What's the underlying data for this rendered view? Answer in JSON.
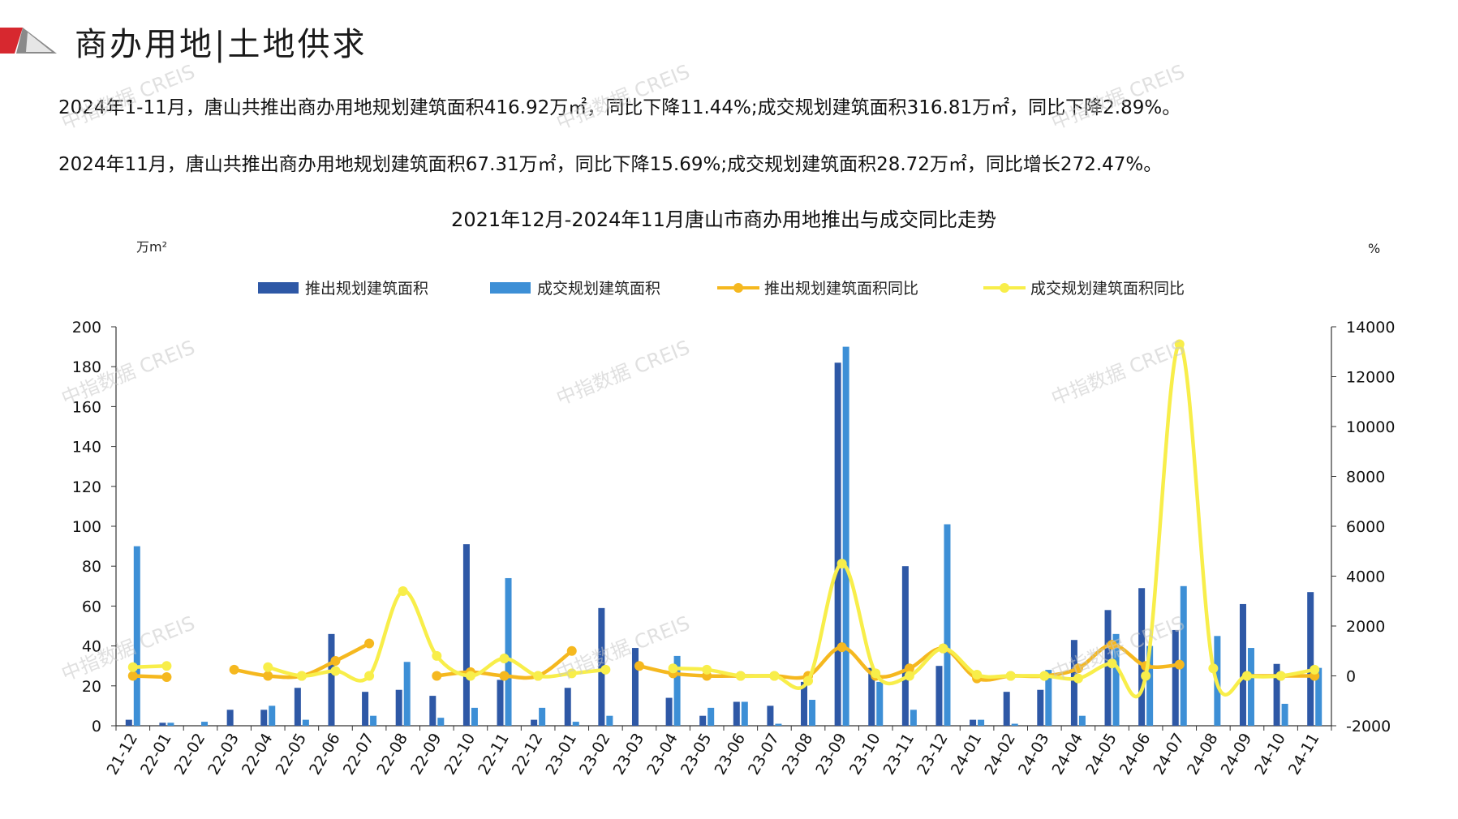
{
  "header": {
    "title": "商办用地|土地供求"
  },
  "summary": {
    "line1": "2024年1-11月，唐山共推出商办用地规划建筑面积416.92万㎡，同比下降11.44%;成交规划建筑面积316.81万㎡，同比下降2.89%。",
    "line2": "2024年11月，唐山共推出商办用地规划建筑面积67.31万㎡，同比下降15.69%;成交规划建筑面积28.72万㎡，同比增长272.47%。"
  },
  "watermark": "中指数据 CREIS",
  "colors": {
    "supply_bar": "#2e58a6",
    "deal_bar": "#3d8fd6",
    "supply_yoy": "#f5b81f",
    "deal_yoy": "#f8ee4a",
    "axis": "#333333",
    "logo_red": "#d7282f",
    "logo_gray": "#8a8a8a"
  },
  "chart_data": {
    "type": "bar",
    "title": "2021年12月-2024年11月唐山市商办用地推出与成交同比走势",
    "y_left_unit": "万m²",
    "y_right_unit": "%",
    "ylim": [
      0,
      200
    ],
    "y_ticks": [
      0,
      20,
      40,
      60,
      80,
      100,
      120,
      140,
      160,
      180,
      200
    ],
    "y2lim": [
      -2000,
      14000
    ],
    "y2_ticks": [
      -2000,
      0,
      2000,
      4000,
      6000,
      8000,
      10000,
      12000,
      14000
    ],
    "legend_position": "top",
    "grid": false,
    "categories": [
      "21-12",
      "22-01",
      "22-02",
      "22-03",
      "22-04",
      "22-05",
      "22-06",
      "22-07",
      "22-08",
      "22-09",
      "22-10",
      "22-11",
      "22-12",
      "23-01",
      "23-02",
      "23-03",
      "23-04",
      "23-05",
      "23-06",
      "23-07",
      "23-08",
      "23-09",
      "23-10",
      "23-11",
      "23-12",
      "24-01",
      "24-02",
      "24-03",
      "24-04",
      "24-05",
      "24-06",
      "24-07",
      "24-08",
      "24-09",
      "24-10",
      "24-11"
    ],
    "series": [
      {
        "name": "推出规划建筑面积",
        "kind": "bar",
        "axis": "left",
        "values": [
          3,
          1.5,
          0,
          8,
          8,
          19,
          46,
          17,
          18,
          15,
          91,
          23,
          3,
          19,
          59,
          39,
          14,
          5,
          12,
          10,
          22,
          182,
          29,
          80,
          30,
          3,
          17,
          18,
          43,
          58,
          69,
          48,
          0,
          61,
          31,
          67
        ]
      },
      {
        "name": "成交规划建筑面积",
        "kind": "bar",
        "axis": "left",
        "values": [
          90,
          1.5,
          2,
          0,
          10,
          3,
          0,
          5,
          32,
          4,
          9,
          74,
          9,
          2,
          5,
          0,
          35,
          9,
          12,
          1,
          13,
          190,
          22,
          8,
          101,
          3,
          1,
          28,
          5,
          46,
          40,
          70,
          45,
          39,
          11,
          29
        ]
      },
      {
        "name": "推出规划建筑面积同比",
        "kind": "line",
        "axis": "right",
        "values": [
          0,
          -50,
          null,
          250,
          0,
          0,
          600,
          1300,
          null,
          0,
          150,
          0,
          0,
          1000,
          null,
          400,
          100,
          0,
          0,
          0,
          0,
          1150,
          0,
          300,
          1100,
          -100,
          0,
          0,
          300,
          1250,
          400,
          450,
          null,
          0,
          0,
          0
        ]
      },
      {
        "name": "成交规划建筑面积同比",
        "kind": "line",
        "axis": "right",
        "values": [
          350,
          400,
          null,
          null,
          350,
          0,
          200,
          0,
          3400,
          800,
          0,
          700,
          0,
          100,
          250,
          null,
          300,
          250,
          0,
          0,
          -200,
          4500,
          100,
          0,
          1100,
          50,
          0,
          0,
          -100,
          500,
          0,
          13300,
          300,
          0,
          0,
          250
        ]
      }
    ]
  }
}
